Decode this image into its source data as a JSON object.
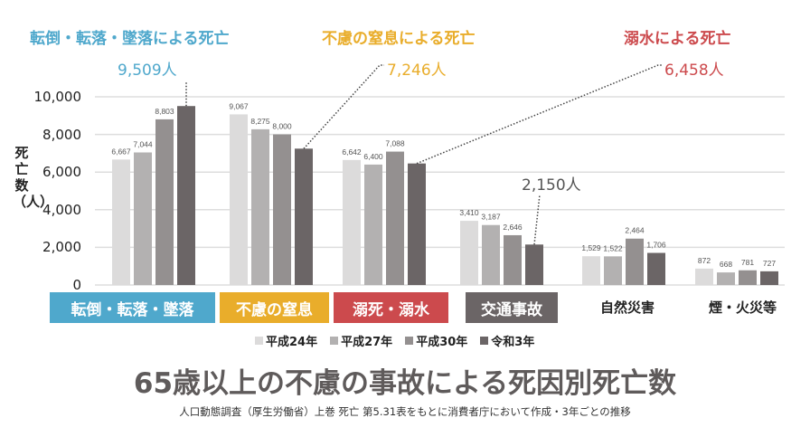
{
  "chart_data": {
    "type": "bar",
    "title": "65歳以上の不慮の事故による死因別死亡数",
    "subtitle": "人口動態調査（厚生労働省）上巻 死亡 第5.31表をもとに消費者庁において作成・3年ごとの推移",
    "ylabel": "死亡数（人）",
    "ylim": [
      0,
      10000
    ],
    "yticks": [
      "0",
      "2,000",
      "4,000",
      "6,000",
      "8,000",
      "10,000"
    ],
    "ytick_values": [
      0,
      2000,
      4000,
      6000,
      8000,
      10000
    ],
    "grid": true,
    "legend_position": "bottom",
    "categories": [
      "転倒・転落・墜落",
      "不慮の窒息",
      "溺死・溺水",
      "交通事故",
      "自然災害",
      "煙・火災等"
    ],
    "series": [
      {
        "name": "平成24年",
        "color": "#dcdbdb",
        "values": [
          6667,
          9067,
          6642,
          3410,
          1529,
          872
        ],
        "labels": [
          "6,667",
          "9,067",
          "6,642",
          "3,410",
          "1,529",
          "872"
        ]
      },
      {
        "name": "平成27年",
        "color": "#b3b1b1",
        "values": [
          7044,
          8275,
          6400,
          3187,
          1522,
          668
        ],
        "labels": [
          "7,044",
          "8,275",
          "6,400",
          "3,187",
          "1,522",
          "668"
        ]
      },
      {
        "name": "平成30年",
        "color": "#949090",
        "values": [
          8803,
          8000,
          7088,
          2646,
          2464,
          781
        ],
        "labels": [
          "8,803",
          "8,000",
          "7,088",
          "2,646",
          "2,464",
          "781"
        ]
      },
      {
        "name": "令和3年",
        "color": "#6b6566",
        "values": [
          9509,
          7246,
          6458,
          2150,
          1706,
          727
        ],
        "labels": [
          "",
          "",
          "",
          "",
          "1,706",
          "727"
        ]
      }
    ],
    "category_boxes": [
      {
        "label": "転倒・転落・墜落",
        "color": "#4fa8cc"
      },
      {
        "label": "不慮の窒息",
        "color": "#e9ad2b"
      },
      {
        "label": "溺死・溺水",
        "color": "#cc4a4d"
      },
      {
        "label": "交通事故",
        "color": "#6b6566"
      },
      {
        "label": "自然災害",
        "color": ""
      },
      {
        "label": "煙・火災等",
        "color": ""
      }
    ],
    "annotations": [
      {
        "heading": "転倒・転落・墜落による死亡",
        "value": "9,509人",
        "color": "#4fa8cc"
      },
      {
        "heading": "不慮の窒息による死亡",
        "value": "7,246人",
        "color": "#e9ad2b"
      },
      {
        "heading": "溺水による死亡",
        "value": "6,458人",
        "color": "#cc4a4d"
      },
      {
        "heading": "",
        "value": "2,150人",
        "color": "#555555"
      }
    ]
  }
}
